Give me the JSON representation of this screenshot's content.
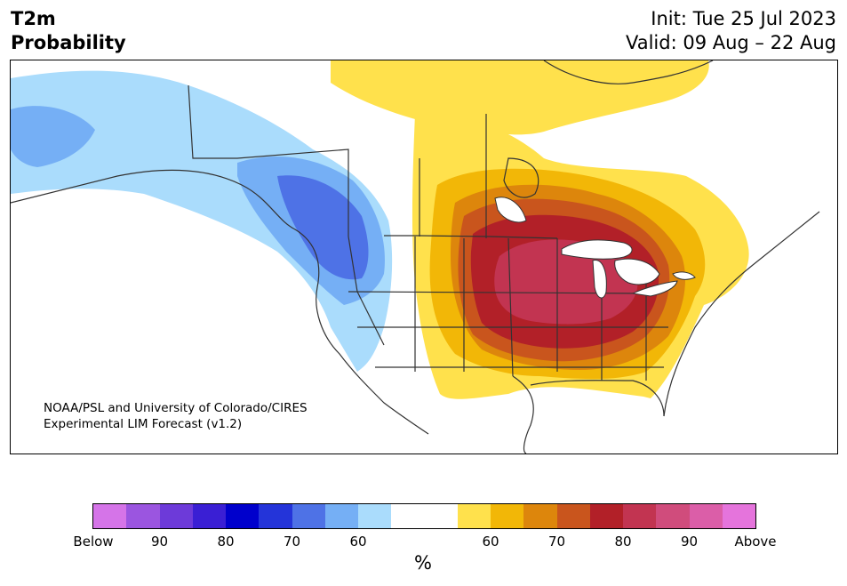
{
  "header": {
    "variable": "T2m",
    "product": "Probability",
    "init": "Init: Tue 25 Jul 2023",
    "valid": "Valid: 09 Aug – 22 Aug"
  },
  "credit": {
    "line1": "NOAA/PSL and University of Colorado/CIRES",
    "line2": "Experimental LIM Forecast (v1.2)"
  },
  "colorbar": {
    "unit": "%",
    "colors": [
      "#d574e8",
      "#9b55e0",
      "#6d3ad9",
      "#3a1fd4",
      "#0000cc",
      "#2434d9",
      "#4e72e6",
      "#75aff5",
      "#aadcfc",
      "#ffffff",
      "#ffffff",
      "#ffe14c",
      "#f2b707",
      "#dd860c",
      "#c9551d",
      "#b22028",
      "#c23451",
      "#d04c7c",
      "#db5ea8",
      "#e574dc"
    ],
    "tick_labels": [
      "Below",
      "90",
      "80",
      "70",
      "60",
      "60",
      "70",
      "80",
      "90",
      "Above"
    ]
  },
  "map": {
    "region": "North America",
    "notable_feature": "Great Lakes"
  }
}
